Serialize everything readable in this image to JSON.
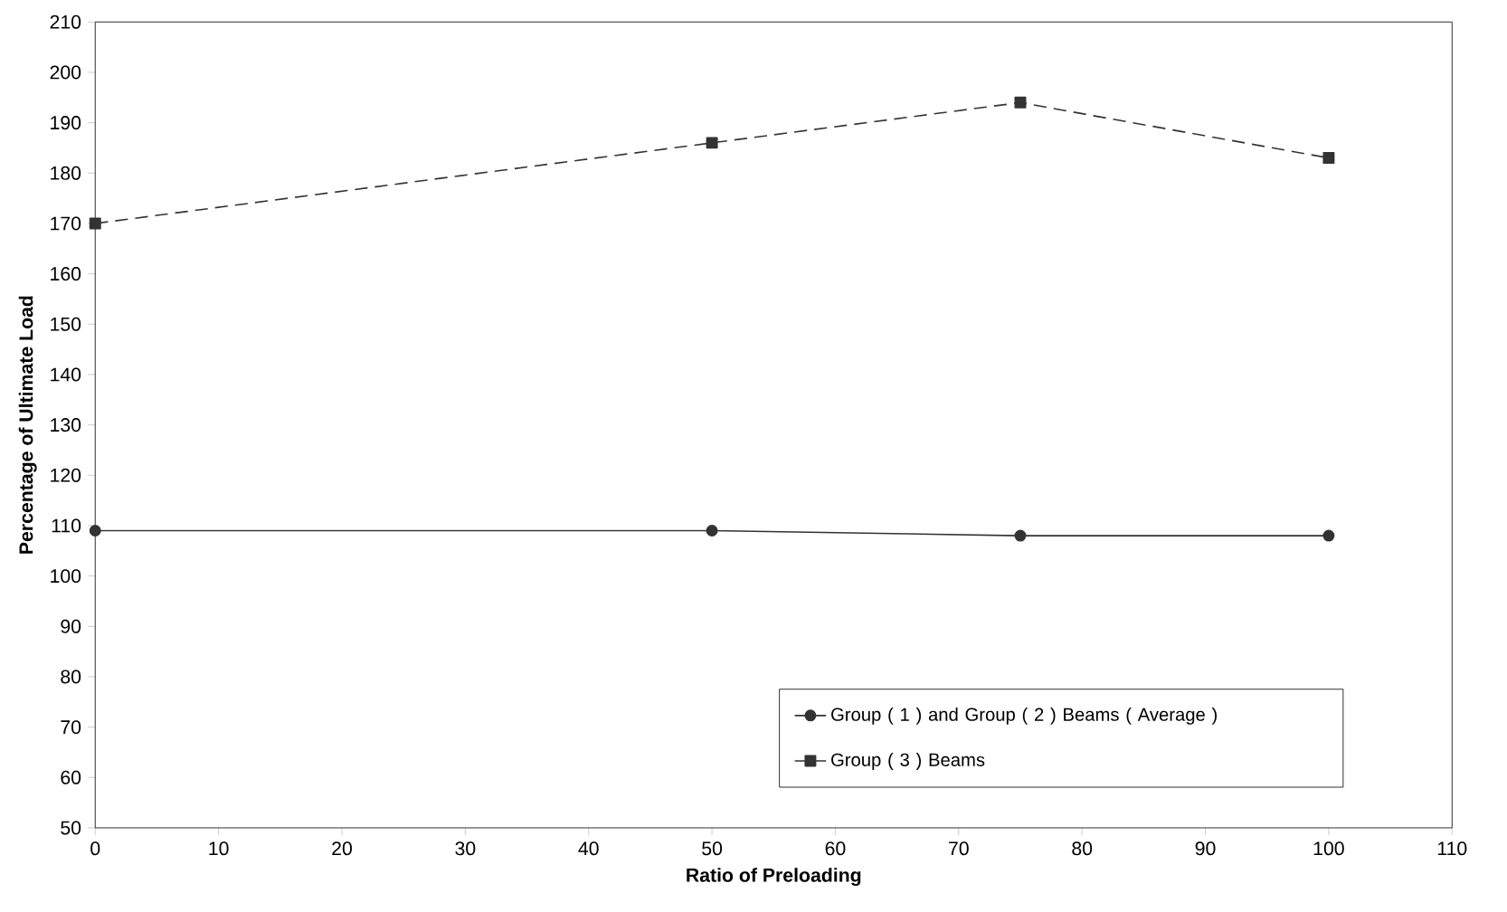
{
  "chart_data": {
    "type": "line",
    "xlabel": "Ratio of Preloading",
    "ylabel": "Percentage of Ultimate Load",
    "x": [
      0,
      50,
      75,
      100
    ],
    "series": [
      {
        "name": "Group ( 1 ) and Group ( 2 )  Beams ( Average )",
        "color": "#333333",
        "values": [
          109,
          109,
          108,
          108
        ],
        "marker": "circle",
        "line_style": "solid"
      },
      {
        "name": "Group ( 3 ) Beams",
        "color": "#333333",
        "values": [
          170,
          186,
          194,
          183
        ],
        "marker": "square",
        "line_style": "dashed"
      }
    ],
    "xlim": [
      0,
      110
    ],
    "xticks": [
      0,
      10,
      20,
      30,
      40,
      50,
      60,
      70,
      80,
      90,
      100,
      110
    ],
    "ylim": [
      50,
      210
    ],
    "yticks": [
      50,
      60,
      70,
      80,
      90,
      100,
      110,
      120,
      130,
      140,
      150,
      160,
      170,
      180,
      190,
      200,
      210
    ],
    "grid": false,
    "legend": "bottom right"
  }
}
